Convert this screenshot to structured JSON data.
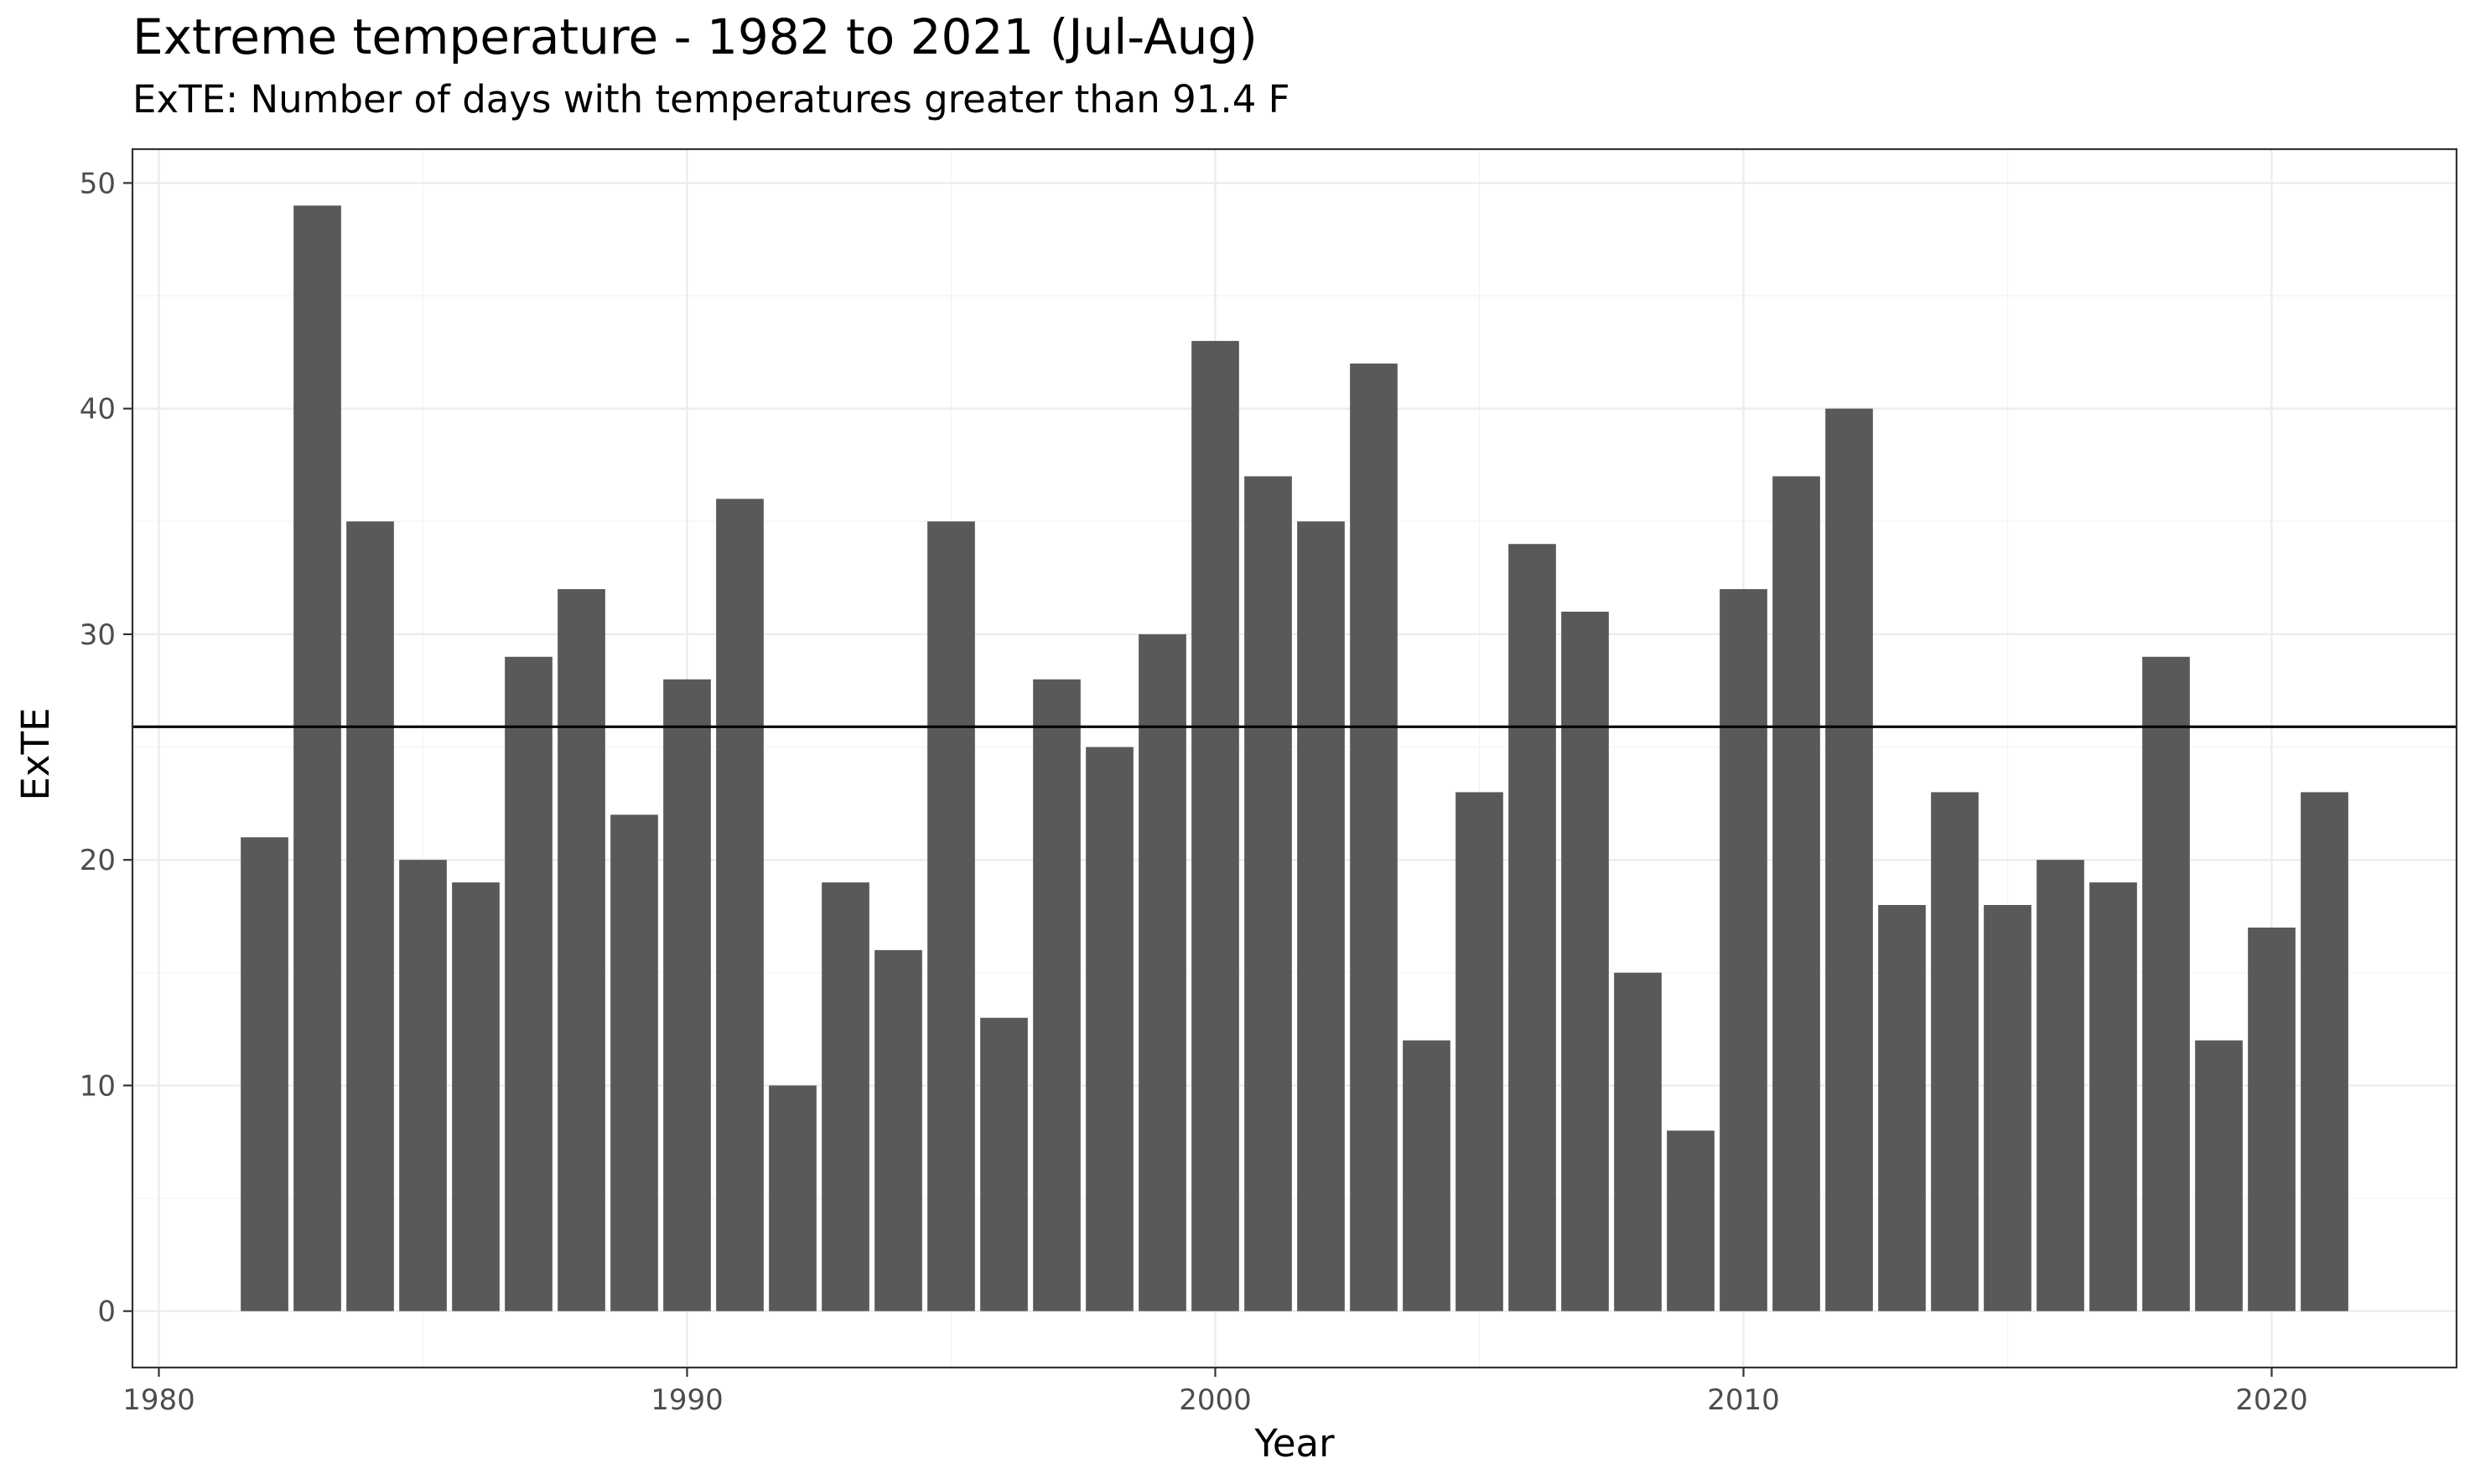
{
  "chart_data": {
    "type": "bar",
    "title": "Extreme temperature - 1982 to 2021 (Jul-Aug)",
    "subtitle": "ExTE: Number of days with temperatures greater than 91.4 F",
    "xlabel": "Year",
    "ylabel": "ExTE",
    "x": [
      1982,
      1983,
      1984,
      1985,
      1986,
      1987,
      1988,
      1989,
      1990,
      1991,
      1992,
      1993,
      1994,
      1995,
      1996,
      1997,
      1998,
      1999,
      2000,
      2001,
      2002,
      2003,
      2004,
      2005,
      2006,
      2007,
      2008,
      2009,
      2010,
      2011,
      2012,
      2013,
      2014,
      2015,
      2016,
      2017,
      2018,
      2019,
      2020,
      2021
    ],
    "values": [
      21,
      49,
      35,
      20,
      19,
      29,
      32,
      22,
      28,
      36,
      10,
      19,
      16,
      35,
      13,
      28,
      25,
      30,
      43,
      37,
      35,
      42,
      12,
      23,
      34,
      31,
      15,
      8,
      32,
      37,
      40,
      18,
      23,
      18,
      20,
      19,
      29,
      12,
      17,
      23
    ],
    "xlim": [
      1979.5,
      2023.5
    ],
    "ylim": [
      -2.5,
      51.5
    ],
    "xticks": [
      1980,
      1990,
      2000,
      2010,
      2020
    ],
    "yticks": [
      0,
      10,
      20,
      30,
      40,
      50
    ],
    "reference_line": 25.9,
    "bar_color": "#595959",
    "grid": true,
    "legend": "none"
  }
}
